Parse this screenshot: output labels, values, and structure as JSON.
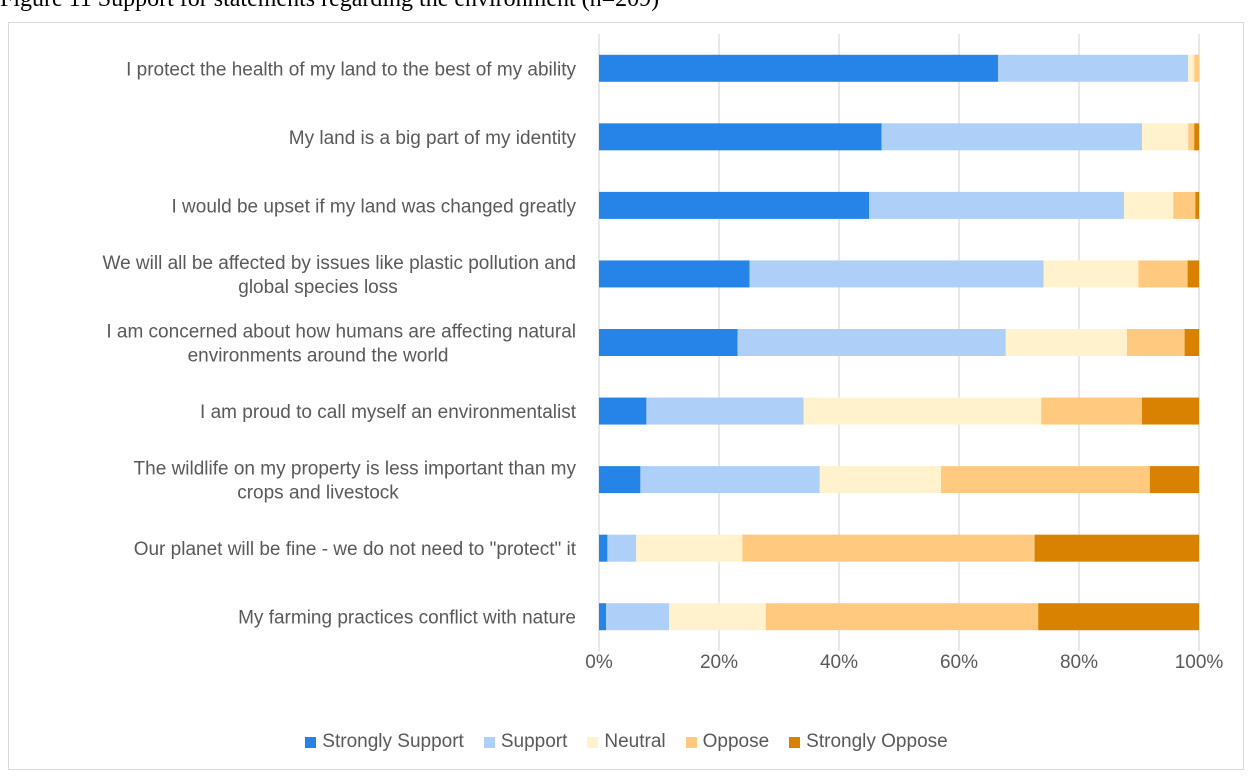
{
  "caption": "Figure 11 Support for statements regarding the environment (n=209)",
  "chart_data": {
    "type": "bar",
    "orientation": "horizontal",
    "stacked": "percent",
    "categories": [
      [
        "I protect the health of my land to the best of my ability"
      ],
      [
        "My land is a big part of my identity"
      ],
      [
        "I would be upset if my land was changed greatly"
      ],
      [
        "We will all be affected by issues like plastic pollution and",
        "global species loss"
      ],
      [
        "I am concerned about how humans are affecting natural",
        "environments around the world"
      ],
      [
        "I am proud to call myself an environmentalist"
      ],
      [
        "The wildlife on my property is less important than my",
        "crops and livestock"
      ],
      [
        "Our planet will be fine - we do not need to \"protect\" it"
      ],
      [
        "My farming practices conflict with nature"
      ]
    ],
    "series": [
      {
        "name": "Strongly Support",
        "color": "#2683E8",
        "values": [
          66.5,
          47.1,
          45.0,
          25.1,
          23.1,
          7.9,
          6.9,
          1.4,
          1.2
        ]
      },
      {
        "name": "Support",
        "color": "#ADCFF8",
        "values": [
          31.7,
          43.4,
          42.5,
          49.0,
          44.7,
          26.2,
          29.9,
          4.8,
          10.5
        ]
      },
      {
        "name": "Neutral",
        "color": "#FFF2CC",
        "values": [
          1.0,
          7.7,
          8.2,
          15.8,
          20.2,
          39.6,
          20.2,
          17.7,
          16.1
        ]
      },
      {
        "name": "Oppose",
        "color": "#FFCA7F",
        "values": [
          0.8,
          1.0,
          3.7,
          8.2,
          9.6,
          16.8,
          34.8,
          48.7,
          45.4
        ]
      },
      {
        "name": "Strongly Oppose",
        "color": "#D98100",
        "values": [
          0.0,
          0.8,
          0.6,
          1.9,
          2.4,
          9.5,
          8.2,
          27.4,
          26.8
        ]
      }
    ],
    "x_ticks": [
      "0%",
      "20%",
      "40%",
      "60%",
      "80%",
      "100%"
    ],
    "xlim": [
      0,
      100
    ],
    "grid": true,
    "legend_position": "bottom"
  }
}
